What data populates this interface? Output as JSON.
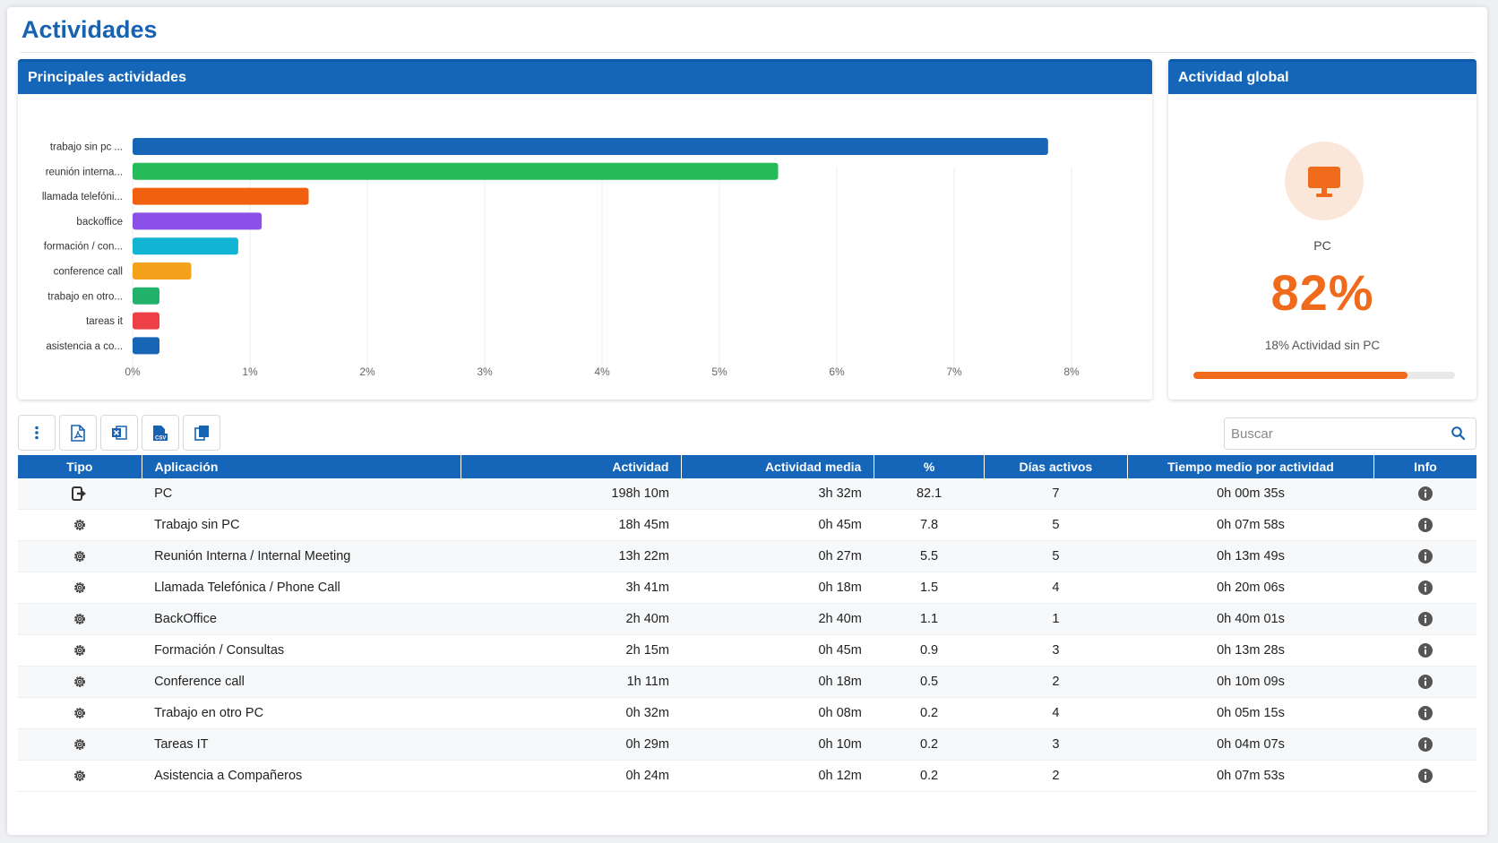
{
  "page": {
    "title": "Actividades"
  },
  "chart_panel": {
    "title": "Principales actividades"
  },
  "chart_data": {
    "type": "bar",
    "orientation": "horizontal",
    "categories": [
      "trabajo sin pc ...",
      "reunión interna...",
      "llamada telefóni...",
      "backoffice",
      "formación / con...",
      "conference call",
      "trabajo en otro...",
      "tareas it",
      "asistencia a co..."
    ],
    "values": [
      7.8,
      5.5,
      1.5,
      1.1,
      0.9,
      0.5,
      0.2,
      0.2,
      0.2
    ],
    "colors": [
      "#1765b5",
      "#25bb58",
      "#f0600e",
      "#8b50e8",
      "#12b4d3",
      "#f4a21b",
      "#23b26a",
      "#ee3e46",
      "#1765b5"
    ],
    "xlim": [
      0,
      8
    ],
    "xticks": [
      "0%",
      "1%",
      "2%",
      "3%",
      "4%",
      "5%",
      "6%",
      "7%",
      "8%"
    ],
    "grid": true
  },
  "global_panel": {
    "title": "Actividad global",
    "icon": "monitor-icon",
    "label": "PC",
    "percent": "82%",
    "sub": "18% Actividad sin PC",
    "progress": 0.82,
    "color": "#ef6a1a"
  },
  "toolbar": {
    "buttons": [
      "more-options-icon",
      "pdf-icon",
      "excel-icon",
      "csv-icon",
      "copy-icon"
    ]
  },
  "search": {
    "placeholder": "Buscar",
    "value": ""
  },
  "table": {
    "headers": [
      "Tipo",
      "Aplicación",
      "Actividad",
      "Actividad media",
      "%",
      "Días activos",
      "Tiempo medio por actividad",
      "Info"
    ],
    "rows": [
      {
        "tipo": "pc-icon",
        "app": "PC",
        "actividad": "198h 10m",
        "media": "3h 32m",
        "pct": "82.1",
        "dias": "7",
        "tiempo": "0h 00m 35s"
      },
      {
        "tipo": "gear-icon",
        "app": "Trabajo sin PC",
        "actividad": "18h 45m",
        "media": "0h 45m",
        "pct": "7.8",
        "dias": "5",
        "tiempo": "0h 07m 58s"
      },
      {
        "tipo": "gear-icon",
        "app": "Reunión Interna / Internal Meeting",
        "actividad": "13h 22m",
        "media": "0h 27m",
        "pct": "5.5",
        "dias": "5",
        "tiempo": "0h 13m 49s"
      },
      {
        "tipo": "gear-icon",
        "app": "Llamada Telefónica / Phone Call",
        "actividad": "3h 41m",
        "media": "0h 18m",
        "pct": "1.5",
        "dias": "4",
        "tiempo": "0h 20m 06s"
      },
      {
        "tipo": "gear-icon",
        "app": "BackOffice",
        "actividad": "2h 40m",
        "media": "2h 40m",
        "pct": "1.1",
        "dias": "1",
        "tiempo": "0h 40m 01s"
      },
      {
        "tipo": "gear-icon",
        "app": "Formación / Consultas",
        "actividad": "2h 15m",
        "media": "0h 45m",
        "pct": "0.9",
        "dias": "3",
        "tiempo": "0h 13m 28s"
      },
      {
        "tipo": "gear-icon",
        "app": "Conference call",
        "actividad": "1h 11m",
        "media": "0h 18m",
        "pct": "0.5",
        "dias": "2",
        "tiempo": "0h 10m 09s"
      },
      {
        "tipo": "gear-icon",
        "app": "Trabajo en otro PC",
        "actividad": "0h 32m",
        "media": "0h 08m",
        "pct": "0.2",
        "dias": "4",
        "tiempo": "0h 05m 15s"
      },
      {
        "tipo": "gear-icon",
        "app": "Tareas IT",
        "actividad": "0h 29m",
        "media": "0h 10m",
        "pct": "0.2",
        "dias": "3",
        "tiempo": "0h 04m 07s"
      },
      {
        "tipo": "gear-icon",
        "app": "Asistencia a Compañeros",
        "actividad": "0h 24m",
        "media": "0h 12m",
        "pct": "0.2",
        "dias": "2",
        "tiempo": "0h 07m 53s"
      }
    ]
  }
}
